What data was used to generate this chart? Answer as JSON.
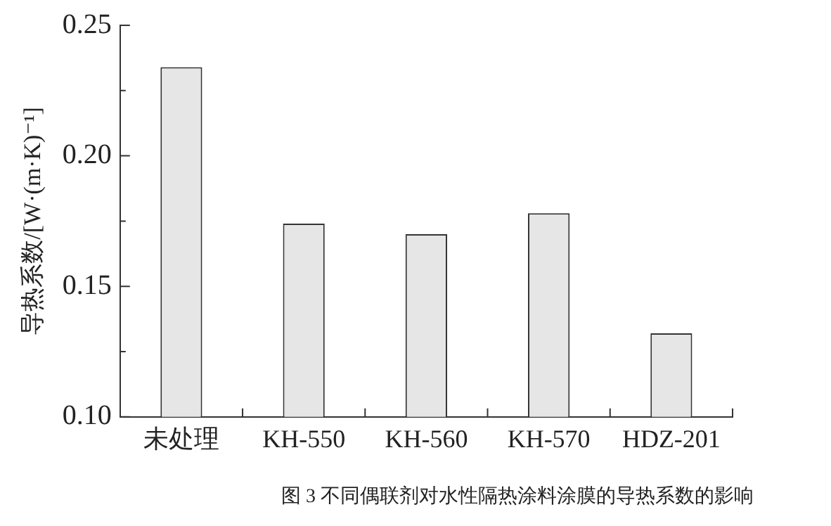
{
  "chart_data": {
    "type": "bar",
    "ylabel": "导热系数/[W·(m·K)⁻¹]",
    "categories": [
      "未处理",
      "KH-550",
      "KH-560",
      "KH-570",
      "HDZ-201"
    ],
    "values": [
      0.234,
      0.174,
      0.17,
      0.178,
      0.132
    ],
    "color": "#e6e6e6",
    "ylim": [
      0.1,
      0.25
    ],
    "yticks": [
      {
        "value": 0.1,
        "label": "0.10"
      },
      {
        "value": 0.125,
        "label": null
      },
      0.15,
      {
        "value": 0.175,
        "label": null
      },
      {
        "value": 0.2,
        "label": "0.20"
      },
      {
        "value": 0.225,
        "label": null
      },
      0.25
    ],
    "grid": false,
    "legend": false,
    "annotations": [
      "图 3 不同偶联剂对水性隔热涂料涂膜的导热系数的影响"
    ]
  }
}
